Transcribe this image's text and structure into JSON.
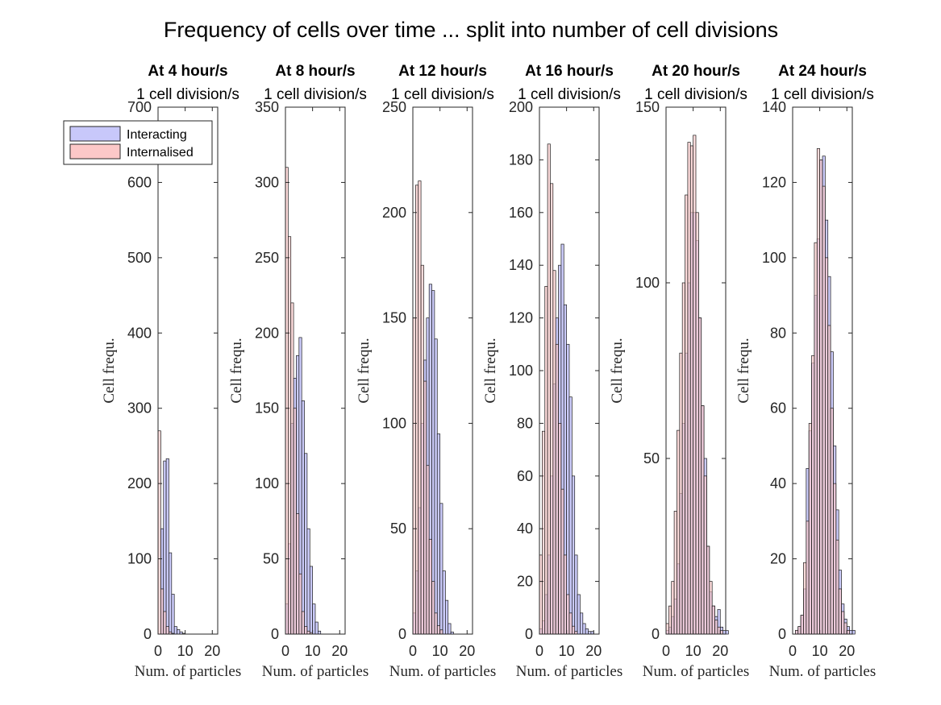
{
  "figure": {
    "title": "Frequency of cells over time ... split into number of cell divisions",
    "legend": {
      "placement": "top-left",
      "entries": [
        {
          "label": "Interacting",
          "color": "#c8c8fa"
        },
        {
          "label": "Internalised",
          "color": "#fcc8c8"
        }
      ]
    }
  },
  "chart_data": [
    {
      "type": "bar",
      "title": "At 4 hour/s",
      "subtitle": "1 cell division/s",
      "xlabel": "Num. of particles",
      "ylabel": "Cell frequ.",
      "xlim": [
        0,
        22
      ],
      "ylim": [
        0,
        700
      ],
      "xticks": [
        0,
        10,
        20
      ],
      "yticks": [
        0,
        100,
        200,
        300,
        400,
        500,
        600,
        700
      ],
      "x": [
        0,
        1,
        2,
        3,
        4,
        5,
        6,
        7,
        8,
        9
      ],
      "series": [
        {
          "name": "Interacting",
          "values": [
            0,
            140,
            230,
            233,
            108,
            53,
            10,
            6,
            3,
            1
          ]
        },
        {
          "name": "Internalised",
          "values": [
            270,
            60,
            30,
            10,
            3,
            1,
            0,
            0,
            0,
            0
          ]
        }
      ]
    },
    {
      "type": "bar",
      "title": "At 8 hour/s",
      "subtitle": "1 cell division/s",
      "xlabel": "Num. of particles",
      "ylabel": "Cell frequ.",
      "xlim": [
        0,
        22
      ],
      "ylim": [
        0,
        350
      ],
      "xticks": [
        0,
        10,
        20
      ],
      "yticks": [
        0,
        50,
        100,
        150,
        200,
        250,
        300,
        350
      ],
      "x": [
        0,
        1,
        2,
        3,
        4,
        5,
        6,
        7,
        8,
        9,
        10,
        11,
        12
      ],
      "series": [
        {
          "name": "Interacting",
          "values": [
            20,
            60,
            140,
            170,
            185,
            197,
            155,
            120,
            70,
            45,
            20,
            8,
            2
          ]
        },
        {
          "name": "Internalised",
          "values": [
            310,
            264,
            220,
            150,
            80,
            40,
            15,
            5,
            2,
            1,
            0,
            0,
            0
          ]
        }
      ]
    },
    {
      "type": "bar",
      "title": "At 12 hour/s",
      "subtitle": "1 cell division/s",
      "xlabel": "Num. of particles",
      "ylabel": "Cell frequ.",
      "xlim": [
        0,
        22
      ],
      "ylim": [
        0,
        250
      ],
      "xticks": [
        0,
        10,
        20
      ],
      "yticks": [
        0,
        50,
        100,
        150,
        200,
        250
      ],
      "x": [
        0,
        1,
        2,
        3,
        4,
        5,
        6,
        7,
        8,
        9,
        10,
        11,
        12,
        13,
        14
      ],
      "series": [
        {
          "name": "Interacting",
          "values": [
            10,
            30,
            60,
            100,
            130,
            150,
            166,
            163,
            140,
            95,
            62,
            30,
            16,
            5,
            1
          ]
        },
        {
          "name": "Internalised",
          "values": [
            150,
            213,
            215,
            175,
            120,
            80,
            45,
            25,
            10,
            4,
            2,
            0,
            0,
            0,
            0
          ]
        }
      ]
    },
    {
      "type": "bar",
      "title": "At 16 hour/s",
      "subtitle": "1 cell division/s",
      "xlabel": "Num. of particles",
      "ylabel": "Cell frequ.",
      "xlim": [
        0,
        22
      ],
      "ylim": [
        0,
        200
      ],
      "xticks": [
        0,
        10,
        20
      ],
      "yticks": [
        0,
        20,
        40,
        60,
        80,
        100,
        120,
        140,
        160,
        180,
        200
      ],
      "x": [
        0,
        1,
        2,
        3,
        4,
        5,
        6,
        7,
        8,
        9,
        10,
        11,
        12,
        13,
        14,
        15,
        16,
        17,
        18,
        19
      ],
      "series": [
        {
          "name": "Interacting",
          "values": [
            2,
            5,
            15,
            30,
            60,
            95,
            120,
            140,
            148,
            125,
            110,
            90,
            60,
            30,
            15,
            8,
            4,
            2,
            1,
            1
          ]
        },
        {
          "name": "Internalised",
          "values": [
            30,
            77,
            132,
            186,
            171,
            138,
            110,
            80,
            55,
            30,
            15,
            8,
            3,
            1,
            0,
            0,
            0,
            0,
            0,
            0
          ]
        }
      ]
    },
    {
      "type": "bar",
      "title": "At 20 hour/s",
      "subtitle": "1 cell division/s",
      "xlabel": "Num. of particles",
      "ylabel": "Cell frequ.",
      "xlim": [
        0,
        22
      ],
      "ylim": [
        0,
        150
      ],
      "xticks": [
        0,
        10,
        20
      ],
      "yticks": [
        0,
        50,
        100,
        150
      ],
      "x": [
        0,
        1,
        2,
        3,
        4,
        5,
        6,
        7,
        8,
        9,
        10,
        11,
        12,
        13,
        14,
        15,
        16,
        17,
        18,
        19,
        20,
        21,
        22
      ],
      "series": [
        {
          "name": "Interacting",
          "values": [
            1,
            2,
            5,
            10,
            20,
            40,
            60,
            80,
            100,
            120,
            120,
            112,
            90,
            65,
            50,
            25,
            12,
            8,
            5,
            7,
            2,
            1,
            1
          ]
        },
        {
          "name": "Internalised",
          "values": [
            3,
            8,
            15,
            35,
            58,
            80,
            100,
            125,
            140,
            139,
            142,
            120,
            90,
            65,
            45,
            25,
            15,
            8,
            4,
            2,
            1,
            0,
            0
          ]
        }
      ]
    },
    {
      "type": "bar",
      "title": "At 24 hour/s",
      "subtitle": "1 cell division/s",
      "xlabel": "Num. of particles",
      "ylabel": "Cell frequ.",
      "xlim": [
        0,
        22
      ],
      "ylim": [
        0,
        140
      ],
      "xticks": [
        0,
        10,
        20
      ],
      "yticks": [
        0,
        20,
        40,
        60,
        80,
        100,
        120,
        140
      ],
      "x": [
        0,
        1,
        2,
        3,
        4,
        5,
        6,
        7,
        8,
        9,
        10,
        11,
        12,
        13,
        14,
        15,
        16,
        17,
        18,
        19,
        20,
        21,
        22
      ],
      "series": [
        {
          "name": "Interacting",
          "values": [
            0,
            1,
            2,
            5,
            12,
            44,
            54,
            72,
            90,
            105,
            126,
            127,
            110,
            95,
            75,
            50,
            33,
            17,
            8,
            4,
            2,
            1,
            1
          ]
        },
        {
          "name": "Internalised",
          "values": [
            0,
            1,
            2,
            5,
            19,
            30,
            56,
            74,
            104,
            129,
            126,
            119,
            100,
            82,
            60,
            40,
            25,
            12,
            6,
            3,
            1,
            0,
            0
          ]
        }
      ]
    }
  ]
}
